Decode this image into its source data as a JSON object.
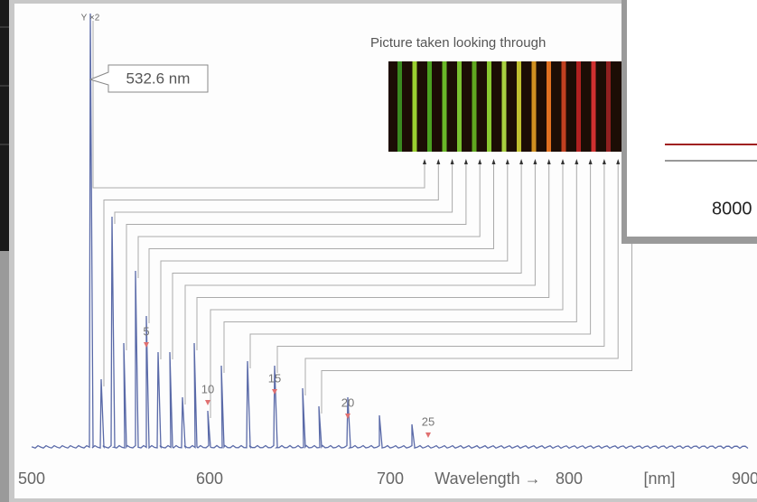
{
  "plot": {
    "y_label": "Y ×2",
    "peak_annotation": "532.6 nm",
    "photo_caption": "Picture taken looking through",
    "x_ticks": [
      "500",
      "600",
      "700",
      "800",
      "900"
    ],
    "x_axis_label": "Wavelength →",
    "x_unit": "[nm]",
    "peak_numbers": [
      "5",
      "10",
      "15",
      "20",
      "25"
    ]
  },
  "side_window": {
    "tick_label": "8000"
  }
}
